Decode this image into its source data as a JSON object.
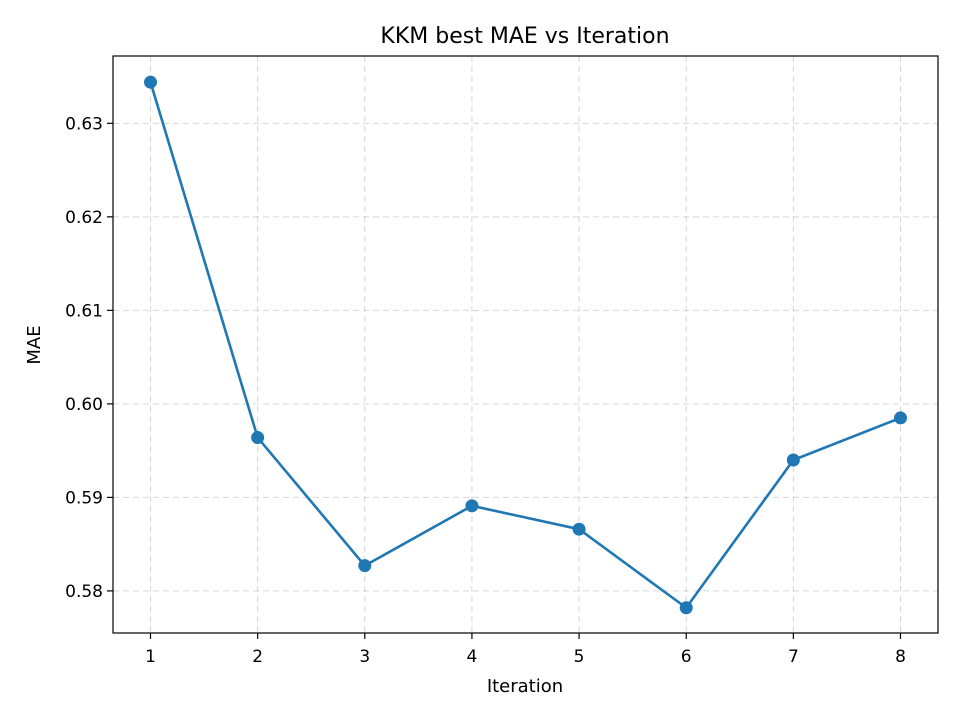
{
  "chart_data": {
    "type": "line",
    "title": "KKM best MAE vs Iteration",
    "xlabel": "Iteration",
    "ylabel": "MAE",
    "x": [
      1,
      2,
      3,
      4,
      5,
      6,
      7,
      8
    ],
    "series": [
      {
        "values": [
          0.6344,
          0.5964,
          0.5827,
          0.5891,
          0.5866,
          0.5782,
          0.594,
          0.5985
        ],
        "color": "#1f77b4",
        "marker": "circle"
      }
    ],
    "xlim": [
      0.65,
      8.35
    ],
    "ylim": [
      0.5755,
      0.6372
    ],
    "xticks": [
      1,
      2,
      3,
      4,
      5,
      6,
      7,
      8
    ],
    "yticks": [
      0.58,
      0.59,
      0.6,
      0.61,
      0.62,
      0.63
    ],
    "ytick_labels": [
      "0.58",
      "0.59",
      "0.60",
      "0.61",
      "0.62",
      "0.63"
    ],
    "grid": true
  }
}
